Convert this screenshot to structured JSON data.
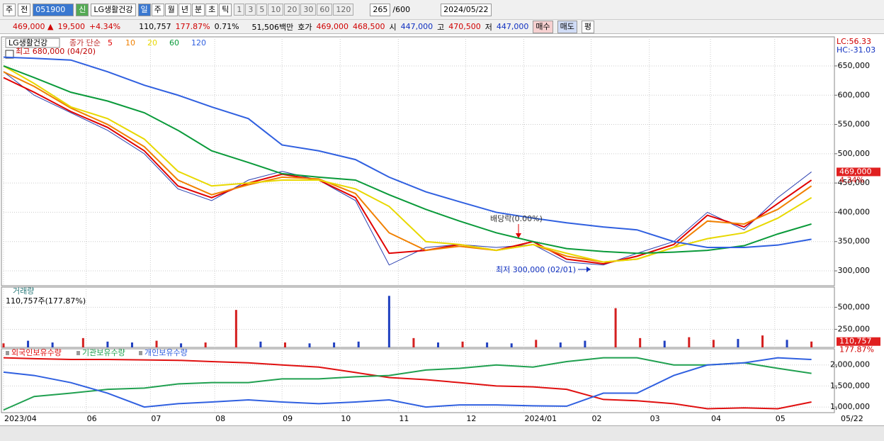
{
  "toolbar": {
    "market": "주",
    "prev": "전",
    "code": "051900",
    "badge": "신",
    "name": "LG생활건강",
    "periods": [
      "일",
      "주",
      "월",
      "년",
      "분",
      "초",
      "틱"
    ],
    "intervals": [
      "1",
      "3",
      "5",
      "10",
      "20",
      "30",
      "60",
      "120"
    ],
    "count": "265",
    "max": "/600",
    "date": "2024/05/22"
  },
  "info": {
    "price": "469,000 ▲",
    "change": "19,500",
    "rate": "+4.34%",
    "volume": "110,757",
    "volume_rate": "177.87%",
    "turnover": "0.71%",
    "amount": "51,506백만",
    "quote_label": "호가",
    "ask": "469,000",
    "bid": "468,500",
    "open_label": "시",
    "open": "447,000",
    "high_label": "고",
    "high": "470,500",
    "low_label": "저",
    "low": "447,000",
    "buy": "매수",
    "sell": "매도",
    "eval": "평"
  },
  "chart_data": [
    {
      "type": "line",
      "title": "LG생활건강",
      "legend_label": "종가 단순",
      "lc": "LC:56.33",
      "hc": "HC:-31.03",
      "last_label": "469,000",
      "last_rate": "4.34%",
      "annotations": [
        {
          "text": "최고 680,000 (04/20)"
        },
        {
          "text": "배당락(0.00%)"
        },
        {
          "text": "최저 300,000 (02/01)"
        }
      ],
      "x": [
        0,
        10,
        22,
        34,
        46,
        57,
        68,
        80,
        91,
        103,
        115,
        126,
        138,
        149,
        161,
        173,
        184,
        196,
        207,
        219,
        230,
        242,
        253,
        264
      ],
      "close": {
        "color": "#2a3fb0",
        "values": [
          640000,
          600000,
          570000,
          540000,
          500000,
          440000,
          420000,
          455000,
          470000,
          455000,
          420000,
          310000,
          340000,
          345000,
          340000,
          345000,
          315000,
          310000,
          330000,
          350000,
          400000,
          370000,
          425000,
          469000
        ]
      },
      "series": [
        {
          "name": "5",
          "color": "#e00000",
          "values": [
            630000,
            605000,
            572000,
            545000,
            505000,
            445000,
            425000,
            450000,
            465000,
            455000,
            425000,
            330000,
            335000,
            345000,
            335000,
            350000,
            320000,
            312000,
            325000,
            345000,
            395000,
            375000,
            415000,
            455000
          ]
        },
        {
          "name": "10",
          "color": "#f08000",
          "values": [
            640000,
            615000,
            578000,
            550000,
            512000,
            455000,
            430000,
            447000,
            460000,
            457000,
            432000,
            365000,
            335000,
            342000,
            335000,
            345000,
            325000,
            315000,
            320000,
            340000,
            385000,
            380000,
            405000,
            445000
          ]
        },
        {
          "name": "20",
          "color": "#e8d800",
          "values": [
            650000,
            620000,
            580000,
            560000,
            525000,
            470000,
            445000,
            450000,
            455000,
            455000,
            440000,
            410000,
            350000,
            345000,
            335000,
            345000,
            330000,
            315000,
            320000,
            340000,
            355000,
            365000,
            390000,
            425000
          ]
        },
        {
          "name": "60",
          "color": "#0a9a3a",
          "values": [
            650000,
            630000,
            605000,
            590000,
            570000,
            540000,
            505000,
            485000,
            466000,
            460000,
            455000,
            430000,
            405000,
            385000,
            365000,
            350000,
            338000,
            333000,
            330000,
            332000,
            335000,
            343000,
            363000,
            380000
          ]
        },
        {
          "name": "120",
          "color": "#3060e0",
          "values": [
            665000,
            663000,
            660000,
            640000,
            617000,
            600000,
            580000,
            560000,
            515000,
            505000,
            490000,
            460000,
            435000,
            418000,
            400000,
            390000,
            382000,
            375000,
            370000,
            350000,
            340000,
            340000,
            344000,
            354000
          ]
        }
      ],
      "xlim": [
        0,
        271.5
      ],
      "ylim": [
        274600,
        699600
      ],
      "yticks": [
        {
          "value": 300000,
          "label": "300,000"
        },
        {
          "value": 350000,
          "label": "350,000"
        },
        {
          "value": 400000,
          "label": "400,000"
        },
        {
          "value": 450000,
          "label": "450,000"
        },
        {
          "value": 500000,
          "label": "500,000"
        },
        {
          "value": 550000,
          "label": "550,000"
        },
        {
          "value": 600000,
          "label": "600,000"
        },
        {
          "value": 650000,
          "label": "650,000"
        }
      ],
      "grid": true
    },
    {
      "type": "bar",
      "title": "거래량",
      "subtitle": "110,757주(177.87%)",
      "last_label": "110,757",
      "last_rate": "177.87%",
      "x": [
        0,
        8,
        16,
        26,
        34,
        42,
        50,
        58,
        66,
        76,
        84,
        92,
        100,
        108,
        116,
        126,
        134,
        142,
        150,
        158,
        166,
        174,
        182,
        190,
        200,
        208,
        216,
        224,
        232,
        240,
        248,
        256,
        264
      ],
      "values": [
        90000,
        120000,
        100000,
        150000,
        110000,
        100000,
        120000,
        90000,
        100000,
        470000,
        110000,
        100000,
        90000,
        100000,
        110000,
        630000,
        150000,
        100000,
        110000,
        100000,
        90000,
        130000,
        100000,
        120000,
        490000,
        150000,
        120000,
        160000,
        130000,
        140000,
        180000,
        130000,
        110757
      ],
      "colors": [
        "#d42020",
        "#2040c0",
        "#2040c0",
        "#d42020",
        "#2040c0",
        "#2040c0",
        "#d42020",
        "#2040c0",
        "#d42020",
        "#d42020",
        "#2040c0",
        "#d42020",
        "#2040c0",
        "#2040c0",
        "#2040c0",
        "#2040c0",
        "#d42020",
        "#2040c0",
        "#d42020",
        "#2040c0",
        "#2040c0",
        "#d42020",
        "#2040c0",
        "#2040c0",
        "#d42020",
        "#d42020",
        "#2040c0",
        "#d42020",
        "#d42020",
        "#2040c0",
        "#d42020",
        "#2040c0",
        "#d42020"
      ],
      "xlim": [
        0,
        271.5
      ],
      "ylim": [
        44000,
        729000
      ],
      "yticks": [
        {
          "value": 250000,
          "label": "250,000"
        },
        {
          "value": 500000,
          "label": "500,000"
        }
      ],
      "grid": true
    },
    {
      "type": "line",
      "end_date": "05/22",
      "x": [
        0,
        10,
        22,
        34,
        46,
        57,
        68,
        80,
        91,
        103,
        115,
        126,
        138,
        149,
        161,
        173,
        184,
        196,
        207,
        219,
        230,
        242,
        253,
        264
      ],
      "series": [
        {
          "name": "외국인보유수량",
          "color": "#e01010",
          "values": [
            2170000,
            2150000,
            2130000,
            2130000,
            2120000,
            2110000,
            2080000,
            2050000,
            2000000,
            1950000,
            1820000,
            1700000,
            1650000,
            1580000,
            1500000,
            1480000,
            1420000,
            1180000,
            1150000,
            1080000,
            960000,
            980000,
            960000,
            1120000
          ]
        },
        {
          "name": "기관보유수량",
          "color": "#20a050",
          "values": [
            930000,
            1250000,
            1330000,
            1420000,
            1450000,
            1550000,
            1580000,
            1580000,
            1670000,
            1670000,
            1720000,
            1750000,
            1880000,
            1920000,
            2000000,
            1950000,
            2080000,
            2170000,
            2170000,
            2000000,
            2000000,
            2050000,
            1920000,
            1800000
          ]
        },
        {
          "name": "개인보유수량",
          "color": "#3060e0",
          "values": [
            1830000,
            1750000,
            1580000,
            1330000,
            1000000,
            1080000,
            1120000,
            1170000,
            1120000,
            1080000,
            1120000,
            1170000,
            1000000,
            1050000,
            1050000,
            1030000,
            1020000,
            1330000,
            1330000,
            1750000,
            2000000,
            2050000,
            2170000,
            2130000
          ]
        }
      ],
      "xlim": [
        0,
        271.5
      ],
      "ylim": [
        867000,
        2383000
      ],
      "xticks": [
        {
          "value": 0,
          "label": "2023/04"
        },
        {
          "value": 27,
          "label": "06"
        },
        {
          "value": 48,
          "label": "07"
        },
        {
          "value": 69,
          "label": "08"
        },
        {
          "value": 91,
          "label": "09"
        },
        {
          "value": 110,
          "label": "10"
        },
        {
          "value": 129,
          "label": "11"
        },
        {
          "value": 151,
          "label": "12"
        },
        {
          "value": 170,
          "label": "2024/01"
        },
        {
          "value": 192,
          "label": "02"
        },
        {
          "value": 211,
          "label": "03"
        },
        {
          "value": 231,
          "label": "04"
        },
        {
          "value": 252,
          "label": "05"
        }
      ],
      "yticks": [
        {
          "value": 1000000,
          "label": "1,000,000"
        },
        {
          "value": 1500000,
          "label": "1,500,000"
        },
        {
          "value": 2000000,
          "label": "2,000,000"
        }
      ],
      "grid": true
    }
  ]
}
